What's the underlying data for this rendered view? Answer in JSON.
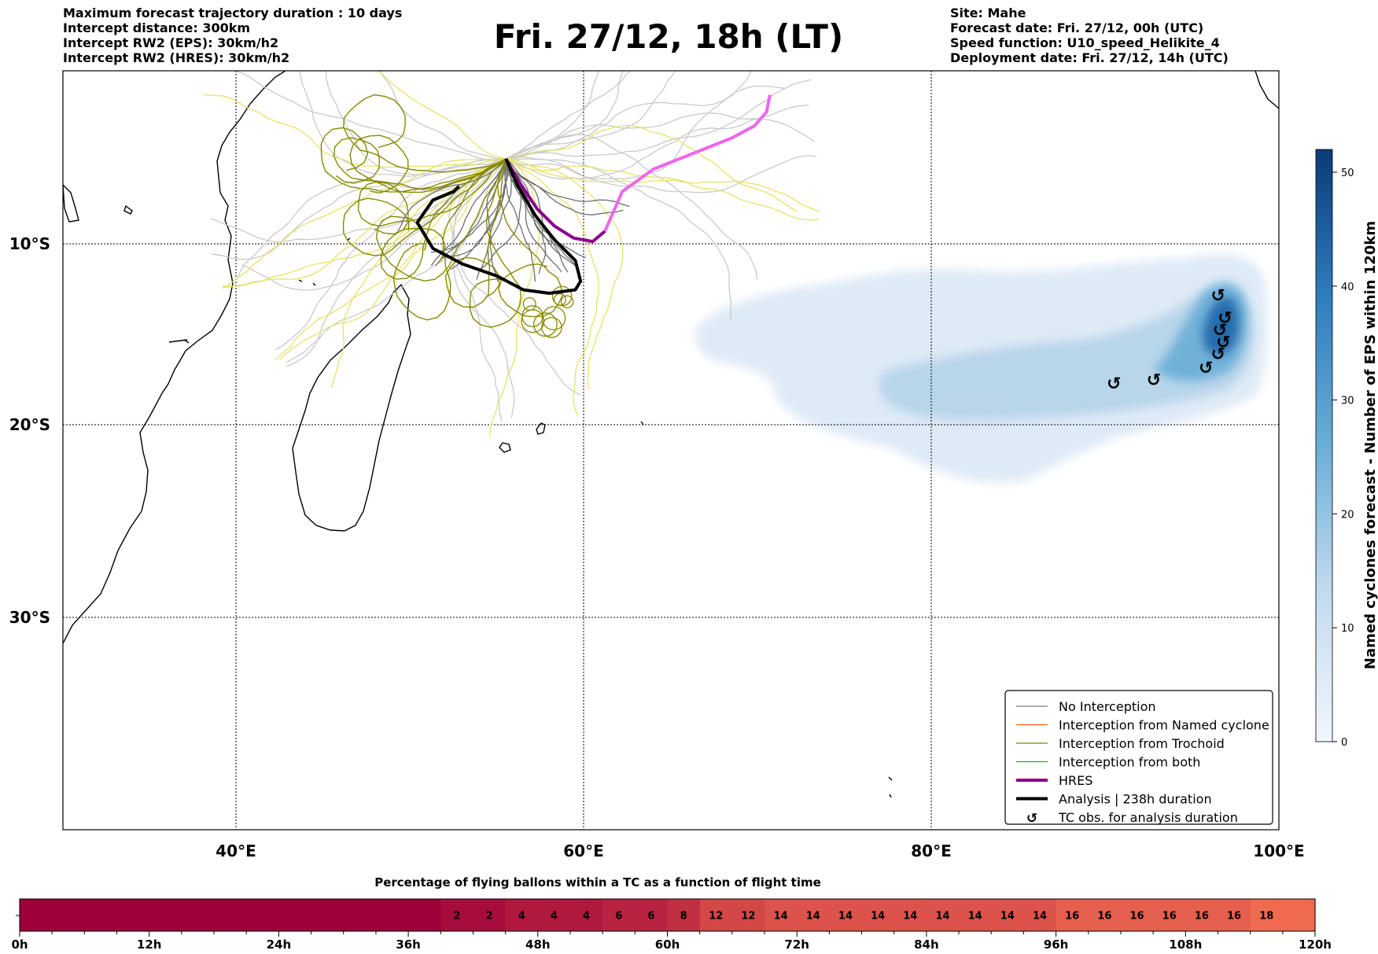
{
  "header": {
    "left_lines": [
      "Maximum forecast trajectory duration : 10 days",
      "Intercept distance: 300km",
      "Intercept RW2 (EPS):  30km/h2",
      "Intercept RW2 (HRES): 30km/h2"
    ],
    "title": "Fri. 27/12, 18h (LT)",
    "right_lines": [
      "Site: Mahe",
      "Forecast date: Fri. 27/12, 00h (UTC)",
      "Speed function: U10_speed_Helikite_4",
      "Deployment date: Fri. 27/12, 14h (UTC)"
    ]
  },
  "map": {
    "lon_ticks": [
      "40°E",
      "60°E",
      "80°E",
      "100°E"
    ],
    "lat_ticks": [
      "10°S",
      "20°S",
      "30°S"
    ],
    "legend": [
      {
        "label": "No Interception",
        "color": "#7f7f7f",
        "style": "thin"
      },
      {
        "label": "Interception from Named cyclone",
        "color": "#ff5722",
        "style": "thin"
      },
      {
        "label": "Interception from Trochoid",
        "color": "#808000",
        "style": "thin"
      },
      {
        "label": "Interception from both",
        "color": "#2ca02c",
        "style": "thin"
      },
      {
        "label": "HRES",
        "color": "#8b008b",
        "style": "thick"
      },
      {
        "label": "Analysis | 238h duration",
        "color": "#000000",
        "style": "thick"
      },
      {
        "label": "TC obs. for analysis duration",
        "color": "#000000",
        "style": "symbol"
      }
    ],
    "colorbar": {
      "label": "Named cyclones forecast - Number of EPS within 120km",
      "ticks": [
        "0",
        "10",
        "20",
        "30",
        "40",
        "50"
      ],
      "min": 0,
      "max": 52,
      "color_low": "#eaf2fb",
      "color_high": "#08306b"
    }
  },
  "chart_data": [
    {
      "type": "map",
      "extent": {
        "lon": [
          30,
          100
        ],
        "lat": [
          -43.5,
          0.5
        ]
      },
      "site": {
        "name": "Mahe",
        "lon": 55.5,
        "lat": -4.6
      },
      "hres_track": [
        [
          55.5,
          -4.6
        ],
        [
          56.3,
          -6.0
        ],
        [
          57.3,
          -7.5
        ],
        [
          58.3,
          -8.5
        ],
        [
          59.4,
          -9.2
        ],
        [
          60.5,
          -9.4
        ],
        [
          61.2,
          -8.8
        ],
        [
          62.2,
          -6.5
        ],
        [
          64.0,
          -5.2
        ],
        [
          66.5,
          -4.2
        ],
        [
          68.5,
          -3.4
        ],
        [
          69.8,
          -2.7
        ],
        [
          70.5,
          -1.9
        ],
        [
          70.7,
          -0.9
        ]
      ],
      "analysis_track": [
        [
          55.5,
          -4.6
        ],
        [
          56.2,
          -6.2
        ],
        [
          57.2,
          -7.9
        ],
        [
          58.3,
          -9.3
        ],
        [
          59.5,
          -10.5
        ],
        [
          59.8,
          -11.7
        ],
        [
          59.5,
          -12.2
        ],
        [
          58.0,
          -12.4
        ],
        [
          56.5,
          -12.2
        ],
        [
          55.0,
          -11.4
        ],
        [
          53.0,
          -10.7
        ],
        [
          51.3,
          -9.8
        ],
        [
          50.4,
          -8.3
        ],
        [
          51.3,
          -7.0
        ],
        [
          52.5,
          -6.5
        ],
        [
          52.8,
          -6.2
        ]
      ],
      "tc_obs": [
        [
          90.5,
          -17.6
        ],
        [
          92.8,
          -17.4
        ],
        [
          95.8,
          -16.7
        ],
        [
          96.5,
          -15.9
        ],
        [
          96.8,
          -15.2
        ],
        [
          96.6,
          -14.5
        ],
        [
          96.9,
          -13.8
        ],
        [
          96.5,
          -12.5
        ]
      ],
      "density_peak": {
        "lon": 97.0,
        "lat": -14.0,
        "value": 52
      }
    },
    {
      "type": "heatmap",
      "title": "Percentage of flying ballons within a TC as a function of flight time",
      "x_ticks": [
        "0h",
        "12h",
        "24h",
        "36h",
        "48h",
        "60h",
        "72h",
        "84h",
        "96h",
        "108h",
        "120h"
      ],
      "x_range_hours": [
        0,
        120
      ],
      "bin_hours": 3,
      "values": [
        0,
        0,
        0,
        0,
        0,
        0,
        0,
        0,
        0,
        0,
        0,
        0,
        0,
        2,
        2,
        4,
        4,
        4,
        6,
        6,
        8,
        12,
        12,
        14,
        14,
        14,
        14,
        14,
        14,
        14,
        14,
        14,
        16,
        16,
        16,
        16,
        16,
        16,
        18,
        null
      ],
      "color_low": "#9e003a",
      "color_high": "#ef6a4e"
    }
  ]
}
